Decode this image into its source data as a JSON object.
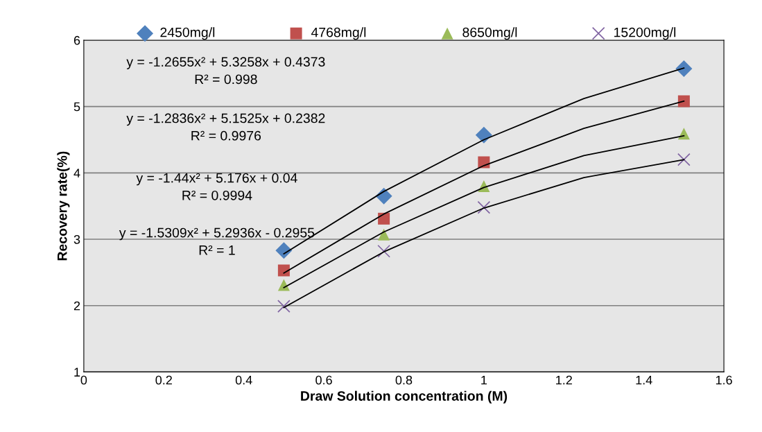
{
  "chart_data": {
    "type": "scatter",
    "xlabel": "Draw Solution concentration (M)",
    "ylabel": "Recovery rate(%)",
    "xlim": [
      0,
      1.6
    ],
    "xticks": [
      0,
      0.2,
      0.4,
      0.6,
      0.8,
      1,
      1.2,
      1.4,
      1.6
    ],
    "ylim": [
      1,
      6
    ],
    "yticks": [
      1,
      2,
      3,
      4,
      5,
      6
    ],
    "grid": "y",
    "legend": "top",
    "series": [
      {
        "name": "2450mg/l",
        "color": "#4f81bd",
        "marker": "diamond",
        "x": [
          0.5,
          0.75,
          1.0,
          1.5
        ],
        "values": [
          2.83,
          3.65,
          4.57,
          5.57
        ]
      },
      {
        "name": "4768mg/l",
        "color": "#c0504d",
        "marker": "square",
        "x": [
          0.5,
          0.75,
          1.0,
          1.5
        ],
        "values": [
          2.53,
          3.31,
          4.16,
          5.08
        ]
      },
      {
        "name": "8650mg/l",
        "color": "#9bbb59",
        "marker": "triangle",
        "x": [
          0.5,
          0.75,
          1.0,
          1.5
        ],
        "values": [
          2.31,
          3.07,
          3.8,
          4.59
        ]
      },
      {
        "name": "15200mg/l",
        "color": "#8064a2",
        "marker": "cross",
        "x": [
          0.5,
          0.75,
          1.0,
          1.5
        ],
        "values": [
          1.99,
          2.82,
          3.48,
          4.2
        ]
      },
      {
        "type": "line",
        "color": "#000000",
        "x": [
          0.5,
          0.75,
          1.0,
          1.25,
          1.5
        ],
        "values": [
          2.78,
          3.72,
          4.5,
          5.12,
          5.58
        ]
      },
      {
        "type": "line",
        "color": "#000000",
        "x": [
          0.5,
          0.75,
          1.0,
          1.25,
          1.5
        ],
        "values": [
          2.49,
          3.38,
          4.11,
          4.67,
          5.08
        ]
      },
      {
        "type": "line",
        "color": "#000000",
        "x": [
          0.5,
          0.75,
          1.0,
          1.25,
          1.5
        ],
        "values": [
          2.27,
          3.11,
          3.78,
          4.26,
          4.56
        ]
      },
      {
        "type": "line",
        "color": "#000000",
        "x": [
          0.5,
          0.75,
          1.0,
          1.25,
          1.5
        ],
        "values": [
          1.97,
          2.81,
          3.47,
          3.93,
          4.2
        ]
      }
    ],
    "annotations": [
      "y = -1.2655x² + 5.3258x + 0.4373\nR² = 0.998",
      "y = -1.2836x² + 5.1525x + 0.2382\nR² = 0.9976",
      "y = -1.44x² + 5.176x + 0.04\nR² = 0.9994",
      "y = -1.5309x² + 5.2936x - 0.2955\nR² = 1"
    ]
  }
}
